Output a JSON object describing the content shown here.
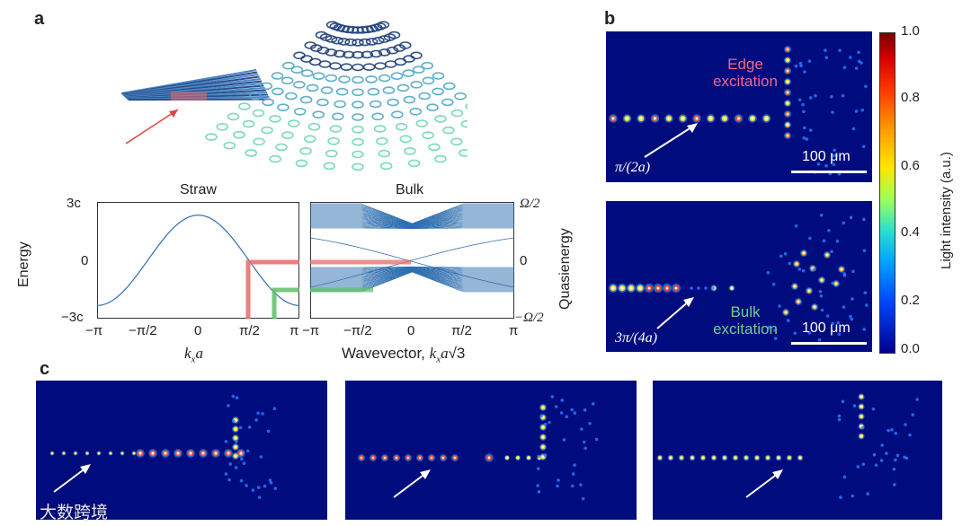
{
  "panel_labels": {
    "a": "a",
    "b": "b",
    "c": "c"
  },
  "panel_a": {
    "straw_title": "Straw",
    "bulk_title": "Bulk",
    "energy_label": "Energy",
    "quasienergy_label": "Quasienergy",
    "y_ticks_left": [
      "3c",
      "0",
      "−3c"
    ],
    "y_ticks_right": [
      "Ω/2",
      "0",
      "−Ω/2"
    ],
    "x_ticks_straw": [
      "−π",
      "−π/2",
      "0",
      "π/2",
      "π"
    ],
    "x_ticks_bulk": [
      "−π",
      "−π/2",
      "0",
      "π/2",
      "π"
    ],
    "straw_xlabel_pre": "k",
    "straw_xlabel_sub": "x",
    "straw_xlabel_post": "a",
    "bulk_xlabel_pre": "Wavevector, ",
    "bulk_xlabel_k": "k",
    "bulk_xlabel_sub": "x",
    "bulk_xlabel_a": "a",
    "bulk_xlabel_root": "√3"
  },
  "panel_b": {
    "top_annotation_line1": "Edge",
    "top_annotation_line2": "excitation",
    "top_wavevector": "π/(2a)",
    "bottom_annotation_line1": "Bulk",
    "bottom_annotation_line2": "excitation",
    "bottom_wavevector": "3π/(4a)",
    "scalebar_top": "100 μm",
    "scalebar_bottom": "100 μm",
    "colorbar_ticks": [
      "1.0",
      "0.8",
      "0.6",
      "0.4",
      "0.2",
      "0.0"
    ],
    "colorbar_label": "Light intensity (a.u.)"
  },
  "watermark": "大数跨境",
  "colors": {
    "map_bg": "#000c7e",
    "edge_red": "#e86a6a",
    "bulk_green": "#5cbf6a",
    "curve_blue": "#2f6fb0"
  }
}
